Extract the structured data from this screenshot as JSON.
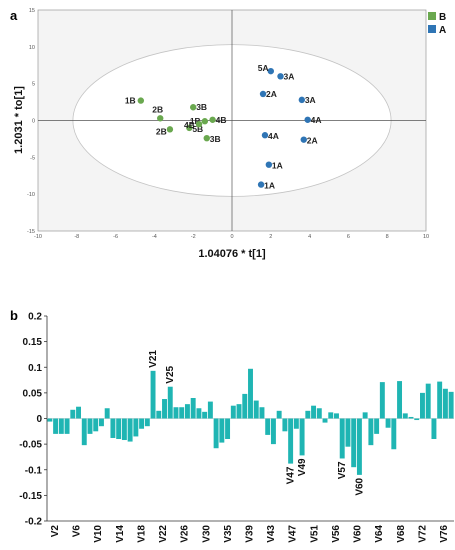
{
  "chart_data": [
    {
      "type": "scatter",
      "panel": "a",
      "xlabel": "1.04076 * t[1]",
      "ylabel": "1.2031 * to[1]",
      "xlim": [
        -10,
        10
      ],
      "ylim": [
        -15,
        15
      ],
      "x_ticks": [
        "-10",
        "-8",
        "-6",
        "-4",
        "-2",
        "0",
        "2",
        "4",
        "6",
        "8",
        "10"
      ],
      "y_ticks": [
        "15",
        "10",
        "5",
        "0",
        "-5",
        "-10",
        "-15"
      ],
      "legend": [
        {
          "name": "B",
          "color": "#6aa84f"
        },
        {
          "name": "A",
          "color": "#2f75b5"
        }
      ],
      "legend_position": "top-right",
      "series": [
        {
          "name": "B",
          "color": "#6aa84f",
          "points": [
            {
              "label": "1B",
              "x": -4.7,
              "y": 2.7
            },
            {
              "label": "2B",
              "x": -3.7,
              "y": 0.3
            },
            {
              "label": "2B",
              "x": -3.2,
              "y": -1.2
            },
            {
              "label": "3B",
              "x": -2.0,
              "y": 1.8
            },
            {
              "label": "5B",
              "x": -2.2,
              "y": -1.0
            },
            {
              "label": "1B",
              "x": -1.4,
              "y": -0.1
            },
            {
              "label": "4B",
              "x": -1.7,
              "y": -0.5
            },
            {
              "label": "4B",
              "x": -1.0,
              "y": 0.1
            },
            {
              "label": "3B",
              "x": -1.3,
              "y": -2.4
            }
          ]
        },
        {
          "name": "A",
          "color": "#2f75b5",
          "points": [
            {
              "label": "5A",
              "x": 2.0,
              "y": 6.7
            },
            {
              "label": "3A",
              "x": 2.5,
              "y": 6.0
            },
            {
              "label": "2A",
              "x": 1.6,
              "y": 3.6
            },
            {
              "label": "3A",
              "x": 3.6,
              "y": 2.8
            },
            {
              "label": "4A",
              "x": 3.9,
              "y": 0.1
            },
            {
              "label": "4A",
              "x": 1.7,
              "y": -2.0
            },
            {
              "label": "2A",
              "x": 3.7,
              "y": -2.6
            },
            {
              "label": "1A",
              "x": 1.9,
              "y": -6.0
            },
            {
              "label": "1A",
              "x": 1.5,
              "y": -8.7
            }
          ]
        }
      ]
    },
    {
      "type": "bar",
      "panel": "b",
      "color": "#1fb5b3",
      "ylim": [
        -0.2,
        0.2
      ],
      "y_ticks": [
        "0.2",
        "0.15",
        "0.1",
        "0.05",
        "0",
        "-0.05",
        "-0.1",
        "-0.15",
        "-0.2"
      ],
      "x_tick_labels": [
        "V2",
        "V6",
        "V10",
        "V14",
        "V18",
        "V22",
        "V26",
        "V30",
        "V35",
        "V39",
        "V43",
        "V47",
        "V51",
        "V56",
        "V60",
        "V64",
        "V68",
        "V72",
        "V76"
      ],
      "annotations": [
        "V21",
        "V25",
        "V47",
        "V49",
        "V57",
        "V60"
      ],
      "values": [
        -0.006,
        -0.03,
        -0.03,
        -0.03,
        0.017,
        0.023,
        -0.052,
        -0.03,
        -0.025,
        -0.015,
        0.02,
        -0.038,
        -0.04,
        -0.042,
        -0.045,
        -0.035,
        -0.02,
        -0.015,
        0.093,
        0.015,
        0.038,
        0.062,
        0.022,
        0.022,
        0.028,
        0.04,
        0.02,
        0.013,
        0.033,
        -0.058,
        -0.047,
        -0.04,
        0.025,
        0.028,
        0.048,
        0.097,
        0.035,
        0.022,
        -0.032,
        -0.05,
        0.015,
        -0.025,
        -0.088,
        -0.02,
        -0.072,
        0.015,
        0.025,
        0.02,
        -0.008,
        0.012,
        0.01,
        -0.078,
        -0.055,
        -0.095,
        -0.11,
        0.012,
        -0.052,
        -0.03,
        0.071,
        -0.018,
        -0.06,
        0.073,
        0.01,
        0.003,
        -0.003,
        0.05,
        0.068,
        -0.04,
        0.072,
        0.058,
        0.052
      ]
    }
  ]
}
